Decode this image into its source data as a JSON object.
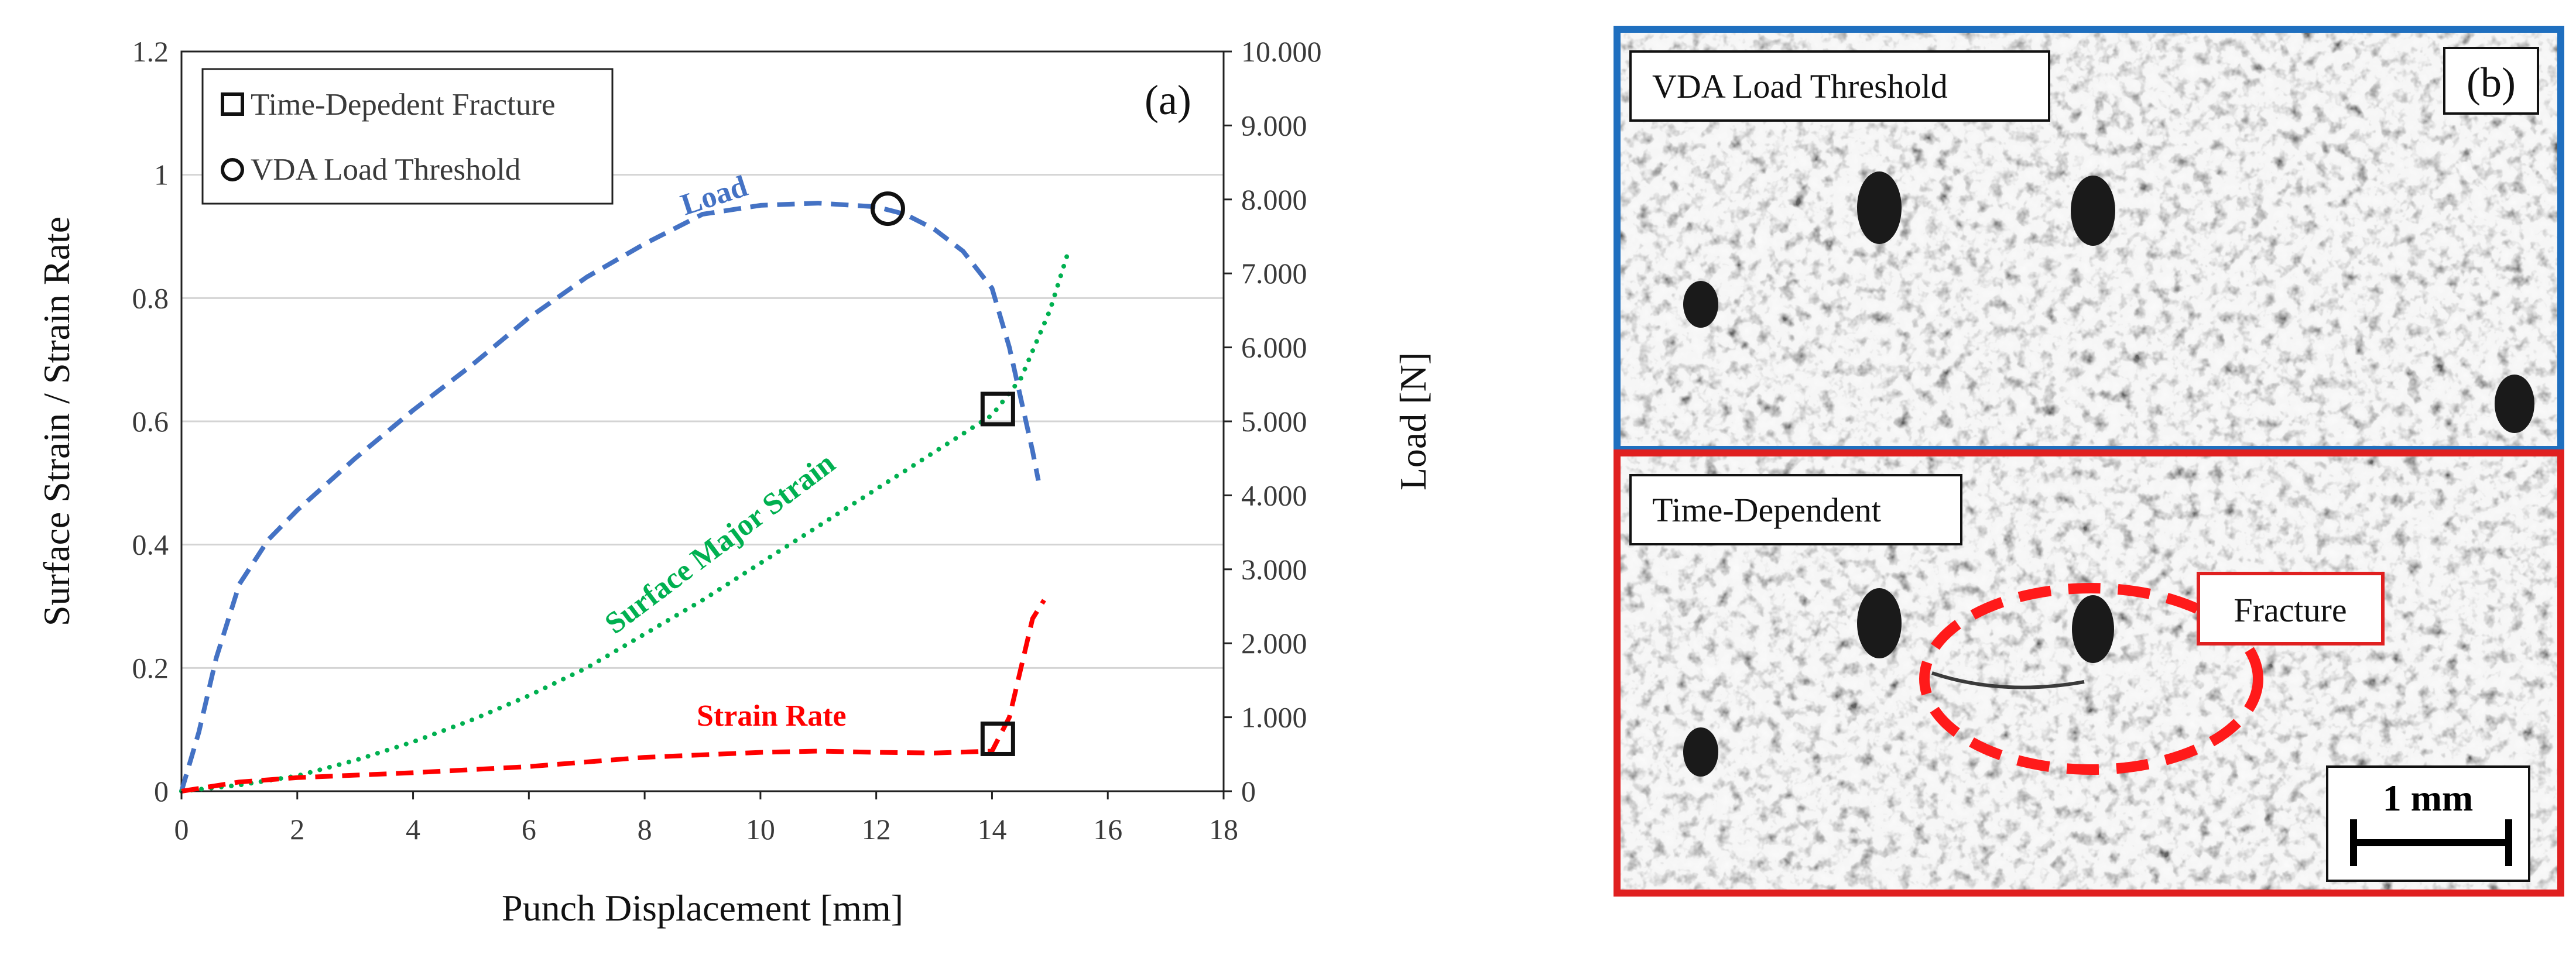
{
  "chart_data": [
    {
      "panel": "(a)",
      "type": "line",
      "xlabel": "Punch Displacement [mm]",
      "ylabel_left": "Surface Strain / Strain Rate",
      "ylabel_right": "Load [N]",
      "xlim": [
        0,
        18
      ],
      "ylim_left": [
        0,
        1.2
      ],
      "ylim_right": [
        0,
        10000
      ],
      "grid": "horizontal",
      "x_ticks": [
        "0",
        "2",
        "4",
        "6",
        "8",
        "10",
        "12",
        "14",
        "16",
        "18"
      ],
      "y_left_ticks": [
        "0",
        "0.2",
        "0.4",
        "0.6",
        "0.8",
        "1",
        "1.2"
      ],
      "y_right_ticks": [
        "0",
        "1.000",
        "2.000",
        "3.000",
        "4.000",
        "5.000",
        "6.000",
        "7.000",
        "8.000",
        "9.000",
        "10.000"
      ],
      "series": [
        {
          "name": "Load",
          "axis": "right",
          "color": "#4472c4",
          "style": "dashed",
          "x": [
            0,
            0.3,
            0.6,
            1.0,
            1.5,
            2.0,
            3.0,
            4.0,
            5.0,
            6.0,
            7.0,
            8.0,
            9.0,
            10.0,
            11.0,
            12.0,
            12.5,
            13.0,
            13.5,
            14.0,
            14.3,
            14.5,
            14.7,
            14.8
          ],
          "y": [
            0,
            800,
            1800,
            2800,
            3400,
            3800,
            4500,
            5150,
            5750,
            6400,
            6950,
            7400,
            7800,
            7920,
            7950,
            7900,
            7800,
            7600,
            7300,
            6800,
            6000,
            5300,
            4600,
            4200
          ]
        },
        {
          "name": "Surface Major Strain",
          "axis": "left",
          "color": "#00b050",
          "style": "dotted",
          "x": [
            0,
            1,
            2,
            3,
            4,
            5,
            6,
            7,
            8,
            9,
            10,
            11,
            12,
            13,
            14,
            14.5,
            15.0,
            15.3
          ],
          "y": [
            0,
            0.01,
            0.025,
            0.05,
            0.08,
            0.115,
            0.155,
            0.2,
            0.255,
            0.31,
            0.37,
            0.43,
            0.49,
            0.55,
            0.61,
            0.67,
            0.78,
            0.87
          ]
        },
        {
          "name": "Strain Rate",
          "axis": "left",
          "color": "#ff0000",
          "style": "dashed",
          "x": [
            0,
            1,
            2,
            4,
            6,
            8,
            10,
            11,
            12,
            13,
            14.0,
            14.3,
            14.5,
            14.7,
            14.9
          ],
          "y": [
            0,
            0.015,
            0.022,
            0.03,
            0.04,
            0.055,
            0.063,
            0.065,
            0.063,
            0.062,
            0.065,
            0.12,
            0.2,
            0.28,
            0.31
          ]
        }
      ],
      "markers": [
        {
          "label": "Time-Depedent Fracture",
          "shape": "square",
          "x": 14.1,
          "y": 0.62
        },
        {
          "label": "Time-Depedent Fracture",
          "shape": "square",
          "x": 14.1,
          "y": 0.085
        },
        {
          "label": "VDA Load Threshold",
          "shape": "circle",
          "x": 12.2,
          "y": 0.945
        }
      ],
      "legend": {
        "placement": "top-left",
        "entries": [
          {
            "shape": "square",
            "label": "Time-Depedent Fracture"
          },
          {
            "shape": "circle",
            "label": "VDA Load Threshold"
          }
        ]
      },
      "annotations": [
        {
          "text": "Load",
          "color": "#4472c4"
        },
        {
          "text": "Surface Major Strain",
          "color": "#00b050"
        },
        {
          "text": "Strain Rate",
          "color": "#ff0000"
        }
      ]
    },
    {
      "panel": "(b)",
      "type": "image",
      "top_label": "VDA Load Threshold",
      "top_border_color": "#1f6fbf",
      "bottom_label": "Time-Dependent",
      "bottom_border_color": "#e02020",
      "fracture_label": "Fracture",
      "scale_bar": "1 mm"
    }
  ]
}
